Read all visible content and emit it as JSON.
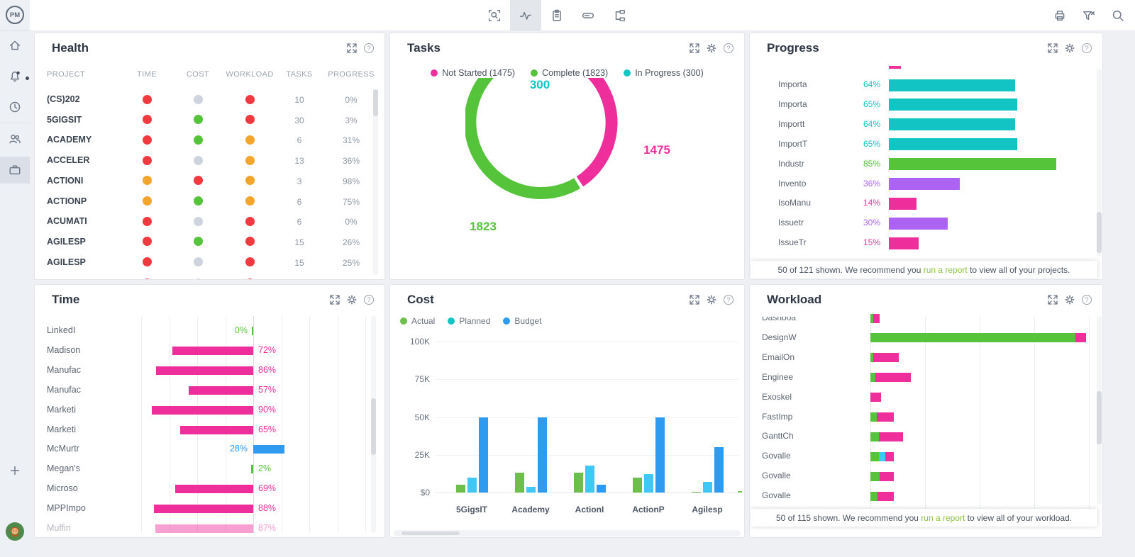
{
  "app": {
    "logo_text": "PM"
  },
  "icons": {
    "help_glyph": "?"
  },
  "colors": {
    "pink": "#EE2F9B",
    "green": "#55C43B",
    "teal": "#13C4C4",
    "purple": "#AC63F1",
    "blue": "#2E9BF0",
    "cyan": "#3FC8F4",
    "cost_actual": "#6DBE4B",
    "red": "#F23940",
    "orange": "#F5A42C",
    "neutral": "#CED4DD",
    "link_green": "#8CC63F"
  },
  "toolbar": {
    "tabs": [
      {
        "name": "select-zoom",
        "icon": "select-zoom",
        "active": false
      },
      {
        "name": "activity",
        "icon": "activity",
        "active": true
      },
      {
        "name": "report",
        "icon": "clipboard",
        "active": false
      },
      {
        "name": "card-view",
        "icon": "card",
        "active": false
      },
      {
        "name": "workflow",
        "icon": "workflow",
        "active": false
      }
    ],
    "actions": [
      {
        "name": "print",
        "icon": "printer"
      },
      {
        "name": "clear-filter",
        "icon": "filter-clear"
      },
      {
        "name": "search",
        "icon": "search"
      }
    ]
  },
  "sidebar": {
    "nav_primary": [
      {
        "name": "home",
        "icon": "home"
      },
      {
        "name": "notifications",
        "icon": "bell",
        "badge": true
      },
      {
        "name": "recent",
        "icon": "clock"
      }
    ],
    "nav_secondary": [
      {
        "name": "team",
        "icon": "users"
      },
      {
        "name": "portfolio",
        "icon": "briefcase",
        "active": true
      }
    ],
    "bottom": [
      {
        "name": "add",
        "icon": "plus"
      },
      {
        "name": "help",
        "icon": "help"
      },
      {
        "name": "account",
        "icon": "avatar"
      }
    ]
  },
  "panels": {
    "health": {
      "title": "Health",
      "header_icons": [
        "expand",
        "help"
      ],
      "columns": [
        "PROJECT",
        "TIME",
        "COST",
        "WORKLOAD",
        "TASKS",
        "PROGRESS"
      ],
      "rows": [
        {
          "project": "(CS)202",
          "time": "red",
          "cost": "neutral",
          "workload": "red",
          "tasks": "10",
          "progress": "0%"
        },
        {
          "project": "5GIGSIT",
          "time": "red",
          "cost": "green",
          "workload": "red",
          "tasks": "30",
          "progress": "3%"
        },
        {
          "project": "ACADEMY",
          "time": "red",
          "cost": "green",
          "workload": "orange",
          "tasks": "6",
          "progress": "31%"
        },
        {
          "project": "ACCELER",
          "time": "red",
          "cost": "neutral",
          "workload": "orange",
          "tasks": "13",
          "progress": "36%"
        },
        {
          "project": "ACTIONI",
          "time": "orange",
          "cost": "red",
          "workload": "orange",
          "tasks": "3",
          "progress": "98%"
        },
        {
          "project": "ACTIONP",
          "time": "orange",
          "cost": "green",
          "workload": "orange",
          "tasks": "6",
          "progress": "75%"
        },
        {
          "project": "ACUMATI",
          "time": "red",
          "cost": "neutral",
          "workload": "red",
          "tasks": "6",
          "progress": "0%"
        },
        {
          "project": "AGILESP",
          "time": "red",
          "cost": "green",
          "workload": "red",
          "tasks": "15",
          "progress": "26%"
        },
        {
          "project": "AGILESP",
          "time": "red",
          "cost": "neutral",
          "workload": "red",
          "tasks": "15",
          "progress": "25%"
        }
      ],
      "partial_row": {
        "time": "red",
        "cost": "neutral",
        "workload": "red"
      }
    },
    "tasks": {
      "title": "Tasks",
      "header_icons": [
        "expand",
        "gear",
        "help"
      ],
      "chart_data": {
        "type": "donut",
        "segments": [
          {
            "label": "Not Started",
            "value": 1475,
            "color": "pink"
          },
          {
            "label": "Complete",
            "value": 1823,
            "color": "green"
          },
          {
            "label": "In Progress",
            "value": 300,
            "color": "teal"
          }
        ]
      }
    },
    "progress": {
      "title": "Progress",
      "header_icons": [
        "expand",
        "gear",
        "help"
      ],
      "chart_data": {
        "type": "bar",
        "rows": [
          {
            "label": "Importa",
            "pct": 64,
            "color": "teal"
          },
          {
            "label": "Importa",
            "pct": 65,
            "color": "teal"
          },
          {
            "label": "Importt",
            "pct": 64,
            "color": "teal"
          },
          {
            "label": "ImportT",
            "pct": 65,
            "color": "teal"
          },
          {
            "label": "Industr",
            "pct": 85,
            "color": "green"
          },
          {
            "label": "Invento",
            "pct": 36,
            "color": "purple"
          },
          {
            "label": "IsoManu",
            "pct": 14,
            "color": "pink"
          },
          {
            "label": "Issuetr",
            "pct": 30,
            "color": "purple"
          },
          {
            "label": "IssueTr",
            "pct": 15,
            "color": "pink"
          }
        ]
      },
      "footer": {
        "prefix": "50 of 121 shown. We recommend you ",
        "link": "run a report",
        "suffix": " to view all of your projects."
      }
    },
    "time": {
      "title": "Time",
      "header_icons": [
        "expand",
        "gear",
        "help"
      ],
      "chart_data": {
        "type": "bar",
        "rows": [
          {
            "label": "LinkedI",
            "pct": 0,
            "color": "green",
            "dir": "left",
            "label_side": "left"
          },
          {
            "label": "Madison",
            "pct": 72,
            "color": "pink",
            "dir": "left",
            "label_side": "right"
          },
          {
            "label": "Manufac",
            "pct": 86,
            "color": "pink",
            "dir": "left",
            "label_side": "right"
          },
          {
            "label": "Manufac",
            "pct": 57,
            "color": "pink",
            "dir": "left",
            "label_side": "right"
          },
          {
            "label": "Marketi",
            "pct": 90,
            "color": "pink",
            "dir": "left",
            "label_side": "right"
          },
          {
            "label": "Marketi",
            "pct": 65,
            "color": "pink",
            "dir": "left",
            "label_side": "right"
          },
          {
            "label": "McMurtr",
            "pct": 28,
            "color": "blue",
            "dir": "right",
            "label_side": "left"
          },
          {
            "label": "Megan's",
            "pct": 2,
            "color": "green",
            "dir": "left",
            "label_side": "right"
          },
          {
            "label": "Microso",
            "pct": 69,
            "color": "pink",
            "dir": "left",
            "label_side": "right"
          },
          {
            "label": "MPPImpo",
            "pct": 88,
            "color": "pink",
            "dir": "left",
            "label_side": "right"
          },
          {
            "label": "Muffin",
            "pct": 87,
            "color": "pink",
            "dir": "left",
            "label_side": "right",
            "partial": true
          }
        ]
      }
    },
    "cost": {
      "title": "Cost",
      "header_icons": [
        "expand",
        "gear",
        "help"
      ],
      "legend": [
        {
          "label": "Actual",
          "color": "cost_actual"
        },
        {
          "label": "Planned",
          "color": "teal"
        },
        {
          "label": "Budget",
          "color": "blue"
        }
      ],
      "chart_data": {
        "type": "bar",
        "y_ticks": [
          "$0",
          "25K",
          "50K",
          "75K",
          "100K"
        ],
        "y_max_k": 100,
        "categories": [
          "5GigsIT",
          "Academy",
          "ActionI",
          "ActionP",
          "Agilesp"
        ],
        "series": [
          {
            "name": "Actual",
            "color": "cost_actual",
            "values_k": [
              5,
              13,
              13,
              10,
              0.5
            ]
          },
          {
            "name": "Planned",
            "color": "cyan",
            "values_k": [
              10,
              4,
              18,
              12,
              7
            ]
          },
          {
            "name": "Budget",
            "color": "blue",
            "values_k": [
              50,
              50,
              5,
              50,
              30
            ]
          }
        ]
      }
    },
    "workload": {
      "title": "Workload",
      "header_icons": [
        "expand",
        "gear",
        "help"
      ],
      "chart_data": {
        "type": "stacked-bar",
        "rows": [
          {
            "label": "Dashboa",
            "partial": true,
            "segments": [
              {
                "color": "green",
                "units": 4
              },
              {
                "color": "pink",
                "units": 9
              }
            ]
          },
          {
            "label": "DesignW",
            "segments": [
              {
                "color": "green",
                "units": 289
              },
              {
                "color": "pink",
                "units": 15
              }
            ]
          },
          {
            "label": "EmailOn",
            "segments": [
              {
                "color": "green",
                "units": 4
              },
              {
                "color": "pink",
                "units": 36
              }
            ]
          },
          {
            "label": "Enginee",
            "segments": [
              {
                "color": "green",
                "units": 7
              },
              {
                "color": "pink",
                "units": 50
              }
            ]
          },
          {
            "label": "Exoskel",
            "segments": [
              {
                "color": "pink",
                "units": 15
              }
            ]
          },
          {
            "label": "FastImp",
            "segments": [
              {
                "color": "green",
                "units": 9
              },
              {
                "color": "pink",
                "units": 24
              }
            ]
          },
          {
            "label": "GanttCh",
            "segments": [
              {
                "color": "green",
                "units": 12
              },
              {
                "color": "pink",
                "units": 34
              }
            ]
          },
          {
            "label": "Govalle",
            "segments": [
              {
                "color": "green",
                "units": 12
              },
              {
                "color": "cyan",
                "units": 9
              },
              {
                "color": "pink",
                "units": 12
              }
            ]
          },
          {
            "label": "Govalle",
            "segments": [
              {
                "color": "green",
                "units": 13
              },
              {
                "color": "pink",
                "units": 20
              }
            ]
          },
          {
            "label": "Govalle",
            "segments": [
              {
                "color": "green",
                "units": 10
              },
              {
                "color": "pink",
                "units": 23
              }
            ]
          }
        ]
      },
      "footer": {
        "prefix": "50 of 115 shown. We recommend you ",
        "link": "run a report",
        "suffix": " to view all of your workload."
      }
    }
  }
}
